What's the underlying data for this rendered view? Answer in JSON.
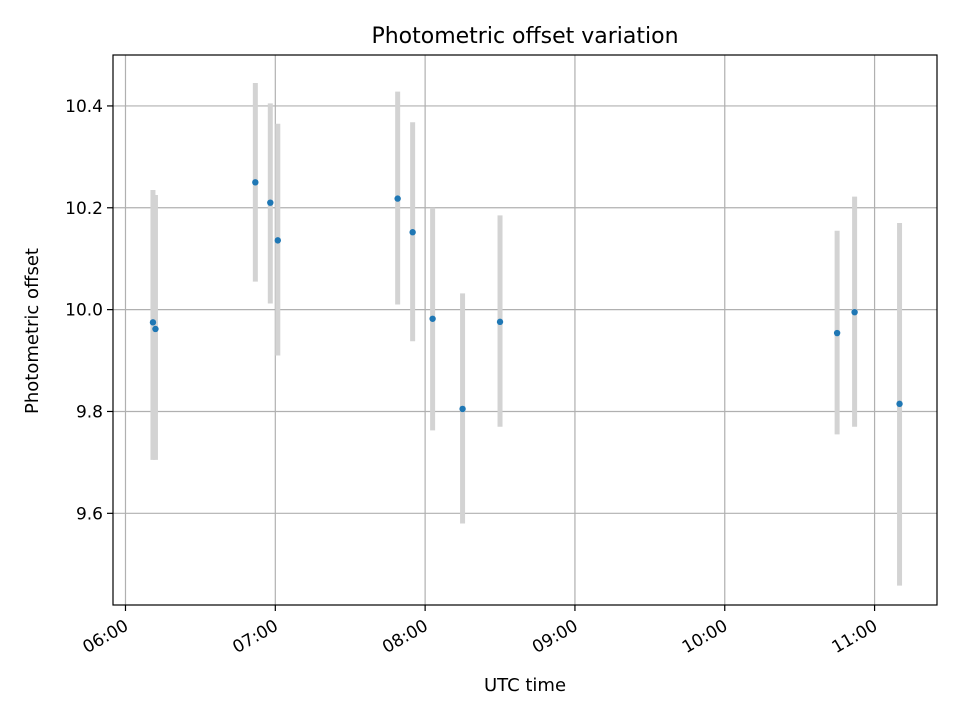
{
  "chart_data": {
    "type": "scatter",
    "title": "Photometric offset variation",
    "xlabel": "UTC time",
    "ylabel": "Photometric offset",
    "x_ticks": [
      "06:00",
      "07:00",
      "08:00",
      "09:00",
      "10:00",
      "11:00"
    ],
    "y_ticks": [
      "9.6",
      "9.8",
      "10.0",
      "10.2",
      "10.4"
    ],
    "xlim": [
      "05:55",
      "11:25"
    ],
    "ylim": [
      9.42,
      10.5
    ],
    "grid": true,
    "colors": {
      "marker": "#1f77b4",
      "errorbar": "#d3d3d3",
      "grid": "#b0b0b0"
    },
    "points": [
      {
        "x": "06:11",
        "y": 9.975,
        "err_low": 9.705,
        "err_high": 10.235
      },
      {
        "x": "06:12",
        "y": 9.962,
        "err_low": 9.705,
        "err_high": 10.225
      },
      {
        "x": "06:52",
        "y": 10.25,
        "err_low": 10.055,
        "err_high": 10.445
      },
      {
        "x": "06:58",
        "y": 10.21,
        "err_low": 10.012,
        "err_high": 10.405
      },
      {
        "x": "07:01",
        "y": 10.136,
        "err_low": 9.91,
        "err_high": 10.365
      },
      {
        "x": "07:49",
        "y": 10.218,
        "err_low": 10.01,
        "err_high": 10.428
      },
      {
        "x": "07:55",
        "y": 10.152,
        "err_low": 9.938,
        "err_high": 10.368
      },
      {
        "x": "08:03",
        "y": 9.982,
        "err_low": 9.763,
        "err_high": 10.2
      },
      {
        "x": "08:15",
        "y": 9.805,
        "err_low": 9.58,
        "err_high": 10.032
      },
      {
        "x": "08:30",
        "y": 9.976,
        "err_low": 9.77,
        "err_high": 10.185
      },
      {
        "x": "10:45",
        "y": 9.954,
        "err_low": 9.755,
        "err_high": 10.155
      },
      {
        "x": "10:52",
        "y": 9.995,
        "err_low": 9.77,
        "err_high": 10.222
      },
      {
        "x": "11:10",
        "y": 9.815,
        "err_low": 9.458,
        "err_high": 10.17
      }
    ]
  }
}
